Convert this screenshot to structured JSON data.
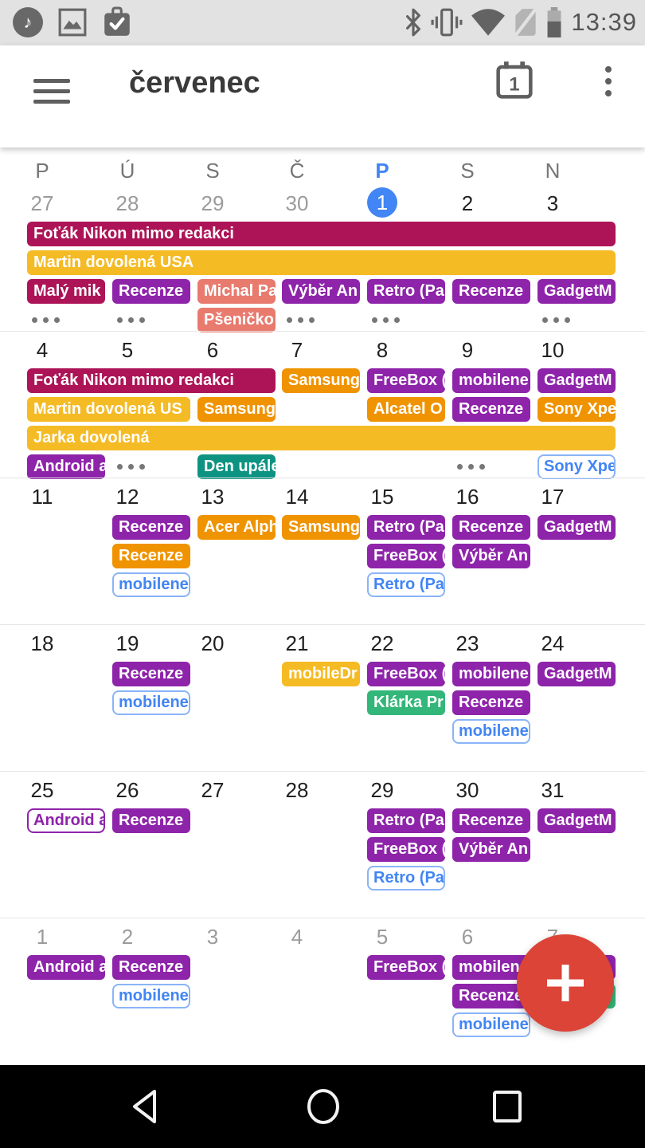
{
  "status_bar": {
    "time": "13:39",
    "left_icons": [
      "music-player",
      "gallery",
      "tasks"
    ],
    "right_icons": [
      "bluetooth",
      "vibrate",
      "wifi",
      "no-sim",
      "battery"
    ]
  },
  "app_bar": {
    "title": "červenec",
    "today_icon_day": "1",
    "actions": [
      "menu",
      "go-to-today",
      "overflow"
    ]
  },
  "palette": {
    "crimson": "#ad1457",
    "amber": "#f5bb25",
    "orange": "#f09300",
    "purple": "#8e24aa",
    "salmon": "#e87a6e",
    "teal": "#0e9382",
    "green": "#33b679",
    "blue": "#4285f4",
    "outline_border_blue": "#8ab4f8",
    "today_blue": "#4285f4",
    "fab_red": "#db4437"
  },
  "calendar": {
    "day_headers": [
      {
        "label": "P",
        "today": false
      },
      {
        "label": "Ú",
        "today": false
      },
      {
        "label": "S",
        "today": false
      },
      {
        "label": "Č",
        "today": false
      },
      {
        "label": "P",
        "today": true
      },
      {
        "label": "S",
        "today": false
      },
      {
        "label": "N",
        "today": false
      }
    ],
    "weeks": [
      {
        "days": [
          {
            "n": "27",
            "muted": true
          },
          {
            "n": "28",
            "muted": true
          },
          {
            "n": "29",
            "muted": true
          },
          {
            "n": "30",
            "muted": true
          },
          {
            "n": "1",
            "today": true
          },
          {
            "n": "2"
          },
          {
            "n": "3"
          }
        ],
        "events": [
          {
            "row": 0,
            "col": 0,
            "span": 7,
            "label": "Foťák Nikon mimo redakci",
            "color": "crimson"
          },
          {
            "row": 1,
            "col": 0,
            "span": 7,
            "label": "Martin dovolená USA",
            "color": "amber"
          },
          {
            "row": 2,
            "col": 0,
            "label": "Malý mik",
            "color": "crimson"
          },
          {
            "row": 2,
            "col": 1,
            "label": "Recenze",
            "color": "purple"
          },
          {
            "row": 2,
            "col": 2,
            "label": "Michal Pa",
            "color": "salmon"
          },
          {
            "row": 2,
            "col": 3,
            "label": "Výběr An",
            "color": "purple"
          },
          {
            "row": 2,
            "col": 4,
            "label": "Retro (Pa",
            "color": "purple"
          },
          {
            "row": 2,
            "col": 5,
            "label": "Recenze",
            "color": "purple"
          },
          {
            "row": 2,
            "col": 6,
            "label": "GadgetM",
            "color": "purple"
          },
          {
            "row": 3,
            "col": 0,
            "more": true
          },
          {
            "row": 3,
            "col": 1,
            "more": true
          },
          {
            "row": 3,
            "col": 2,
            "label": "Pšeničko",
            "color": "salmon"
          },
          {
            "row": 3,
            "col": 3,
            "more": true
          },
          {
            "row": 3,
            "col": 4,
            "more": true
          },
          {
            "row": 3,
            "col": 6,
            "more": true
          }
        ]
      },
      {
        "days": [
          {
            "n": "4"
          },
          {
            "n": "5"
          },
          {
            "n": "6"
          },
          {
            "n": "7"
          },
          {
            "n": "8"
          },
          {
            "n": "9"
          },
          {
            "n": "10"
          }
        ],
        "events": [
          {
            "row": 0,
            "col": 0,
            "span": 3,
            "label": "Foťák Nikon mimo redakci",
            "color": "crimson"
          },
          {
            "row": 0,
            "col": 3,
            "label": "Samsung",
            "color": "orange"
          },
          {
            "row": 0,
            "col": 4,
            "label": "FreeBox (",
            "color": "purple"
          },
          {
            "row": 0,
            "col": 5,
            "label": "mobilene",
            "color": "purple"
          },
          {
            "row": 0,
            "col": 6,
            "label": "GadgetM",
            "color": "purple"
          },
          {
            "row": 1,
            "col": 0,
            "span": 2,
            "label": "Martin dovolená US",
            "color": "amber"
          },
          {
            "row": 1,
            "col": 2,
            "label": "Samsung",
            "color": "orange"
          },
          {
            "row": 1,
            "col": 4,
            "label": "Alcatel O",
            "color": "orange"
          },
          {
            "row": 1,
            "col": 5,
            "label": "Recenze",
            "color": "purple"
          },
          {
            "row": 1,
            "col": 6,
            "label": "Sony Xpe",
            "color": "orange"
          },
          {
            "row": 2,
            "col": 0,
            "span": 7,
            "label": "Jarka dovolená",
            "color": "amber"
          },
          {
            "row": 3,
            "col": 0,
            "label": "Android a",
            "color": "purple"
          },
          {
            "row": 3,
            "col": 1,
            "more": true
          },
          {
            "row": 3,
            "col": 2,
            "label": "Den upále",
            "color": "teal"
          },
          {
            "row": 3,
            "col": 5,
            "more": true
          },
          {
            "row": 3,
            "col": 6,
            "label": "Sony Xpe",
            "color": "blue",
            "variant": "outline"
          }
        ]
      },
      {
        "days": [
          {
            "n": "11"
          },
          {
            "n": "12"
          },
          {
            "n": "13"
          },
          {
            "n": "14"
          },
          {
            "n": "15"
          },
          {
            "n": "16"
          },
          {
            "n": "17"
          }
        ],
        "events": [
          {
            "row": 0,
            "col": 1,
            "label": "Recenze",
            "color": "purple"
          },
          {
            "row": 0,
            "col": 2,
            "label": "Acer Alph",
            "color": "orange"
          },
          {
            "row": 0,
            "col": 3,
            "label": "Samsung",
            "color": "orange"
          },
          {
            "row": 0,
            "col": 4,
            "label": "Retro (Pa",
            "color": "purple"
          },
          {
            "row": 0,
            "col": 5,
            "label": "Recenze",
            "color": "purple"
          },
          {
            "row": 0,
            "col": 6,
            "label": "GadgetM",
            "color": "purple"
          },
          {
            "row": 1,
            "col": 1,
            "label": "Recenze",
            "color": "orange"
          },
          {
            "row": 1,
            "col": 4,
            "label": "FreeBox (",
            "color": "purple"
          },
          {
            "row": 1,
            "col": 5,
            "label": "Výběr An",
            "color": "purple"
          },
          {
            "row": 2,
            "col": 1,
            "label": "mobilene",
            "color": "blue",
            "variant": "outline"
          },
          {
            "row": 2,
            "col": 4,
            "label": "Retro (Pa",
            "color": "blue",
            "variant": "outline"
          }
        ]
      },
      {
        "days": [
          {
            "n": "18"
          },
          {
            "n": "19"
          },
          {
            "n": "20"
          },
          {
            "n": "21"
          },
          {
            "n": "22"
          },
          {
            "n": "23"
          },
          {
            "n": "24"
          }
        ],
        "events": [
          {
            "row": 0,
            "col": 1,
            "label": "Recenze",
            "color": "purple"
          },
          {
            "row": 0,
            "col": 3,
            "label": "mobileDr",
            "color": "amber"
          },
          {
            "row": 0,
            "col": 4,
            "label": "FreeBox (",
            "color": "purple"
          },
          {
            "row": 0,
            "col": 5,
            "label": "mobilene",
            "color": "purple"
          },
          {
            "row": 0,
            "col": 6,
            "label": "GadgetM",
            "color": "purple"
          },
          {
            "row": 1,
            "col": 1,
            "label": "mobilene",
            "color": "blue",
            "variant": "outline"
          },
          {
            "row": 1,
            "col": 4,
            "label": "Klárka Pr",
            "color": "green"
          },
          {
            "row": 1,
            "col": 5,
            "label": "Recenze",
            "color": "purple"
          },
          {
            "row": 2,
            "col": 5,
            "label": "mobilene",
            "color": "blue",
            "variant": "outline"
          }
        ]
      },
      {
        "days": [
          {
            "n": "25"
          },
          {
            "n": "26"
          },
          {
            "n": "27"
          },
          {
            "n": "28"
          },
          {
            "n": "29"
          },
          {
            "n": "30"
          },
          {
            "n": "31"
          }
        ],
        "events": [
          {
            "row": 0,
            "col": 0,
            "label": "Android a",
            "color": "purple",
            "variant": "outline"
          },
          {
            "row": 0,
            "col": 1,
            "label": "Recenze",
            "color": "purple"
          },
          {
            "row": 0,
            "col": 4,
            "label": "Retro (Pa",
            "color": "purple"
          },
          {
            "row": 0,
            "col": 5,
            "label": "Recenze",
            "color": "purple"
          },
          {
            "row": 0,
            "col": 6,
            "label": "GadgetM",
            "color": "purple"
          },
          {
            "row": 1,
            "col": 4,
            "label": "FreeBox (",
            "color": "purple"
          },
          {
            "row": 1,
            "col": 5,
            "label": "Výběr An",
            "color": "purple"
          },
          {
            "row": 2,
            "col": 4,
            "label": "Retro (Pa",
            "color": "blue",
            "variant": "outline"
          }
        ]
      },
      {
        "days": [
          {
            "n": "1",
            "muted": true
          },
          {
            "n": "2",
            "muted": true
          },
          {
            "n": "3",
            "muted": true
          },
          {
            "n": "4",
            "muted": true
          },
          {
            "n": "5",
            "muted": true
          },
          {
            "n": "6",
            "muted": true
          },
          {
            "n": "7",
            "muted": true
          }
        ],
        "events": [
          {
            "row": 0,
            "col": 0,
            "label": "Android a",
            "color": "purple"
          },
          {
            "row": 0,
            "col": 1,
            "label": "Recenze",
            "color": "purple"
          },
          {
            "row": 0,
            "col": 4,
            "label": "FreeBox (",
            "color": "purple"
          },
          {
            "row": 0,
            "col": 5,
            "label": "mobilene",
            "color": "purple"
          },
          {
            "row": 0,
            "col": 6,
            "label": "",
            "color": "purple"
          },
          {
            "row": 1,
            "col": 1,
            "label": "mobilene",
            "color": "blue",
            "variant": "outline"
          },
          {
            "row": 1,
            "col": 5,
            "label": "Recenze",
            "color": "purple"
          },
          {
            "row": 1,
            "col": 6,
            "label": "",
            "color": "green"
          },
          {
            "row": 2,
            "col": 5,
            "label": "mobilene",
            "color": "blue",
            "variant": "outline"
          }
        ]
      }
    ]
  },
  "fab": {
    "label": "add-event"
  },
  "nav_bar": {
    "items": [
      "back",
      "home",
      "recents"
    ]
  }
}
